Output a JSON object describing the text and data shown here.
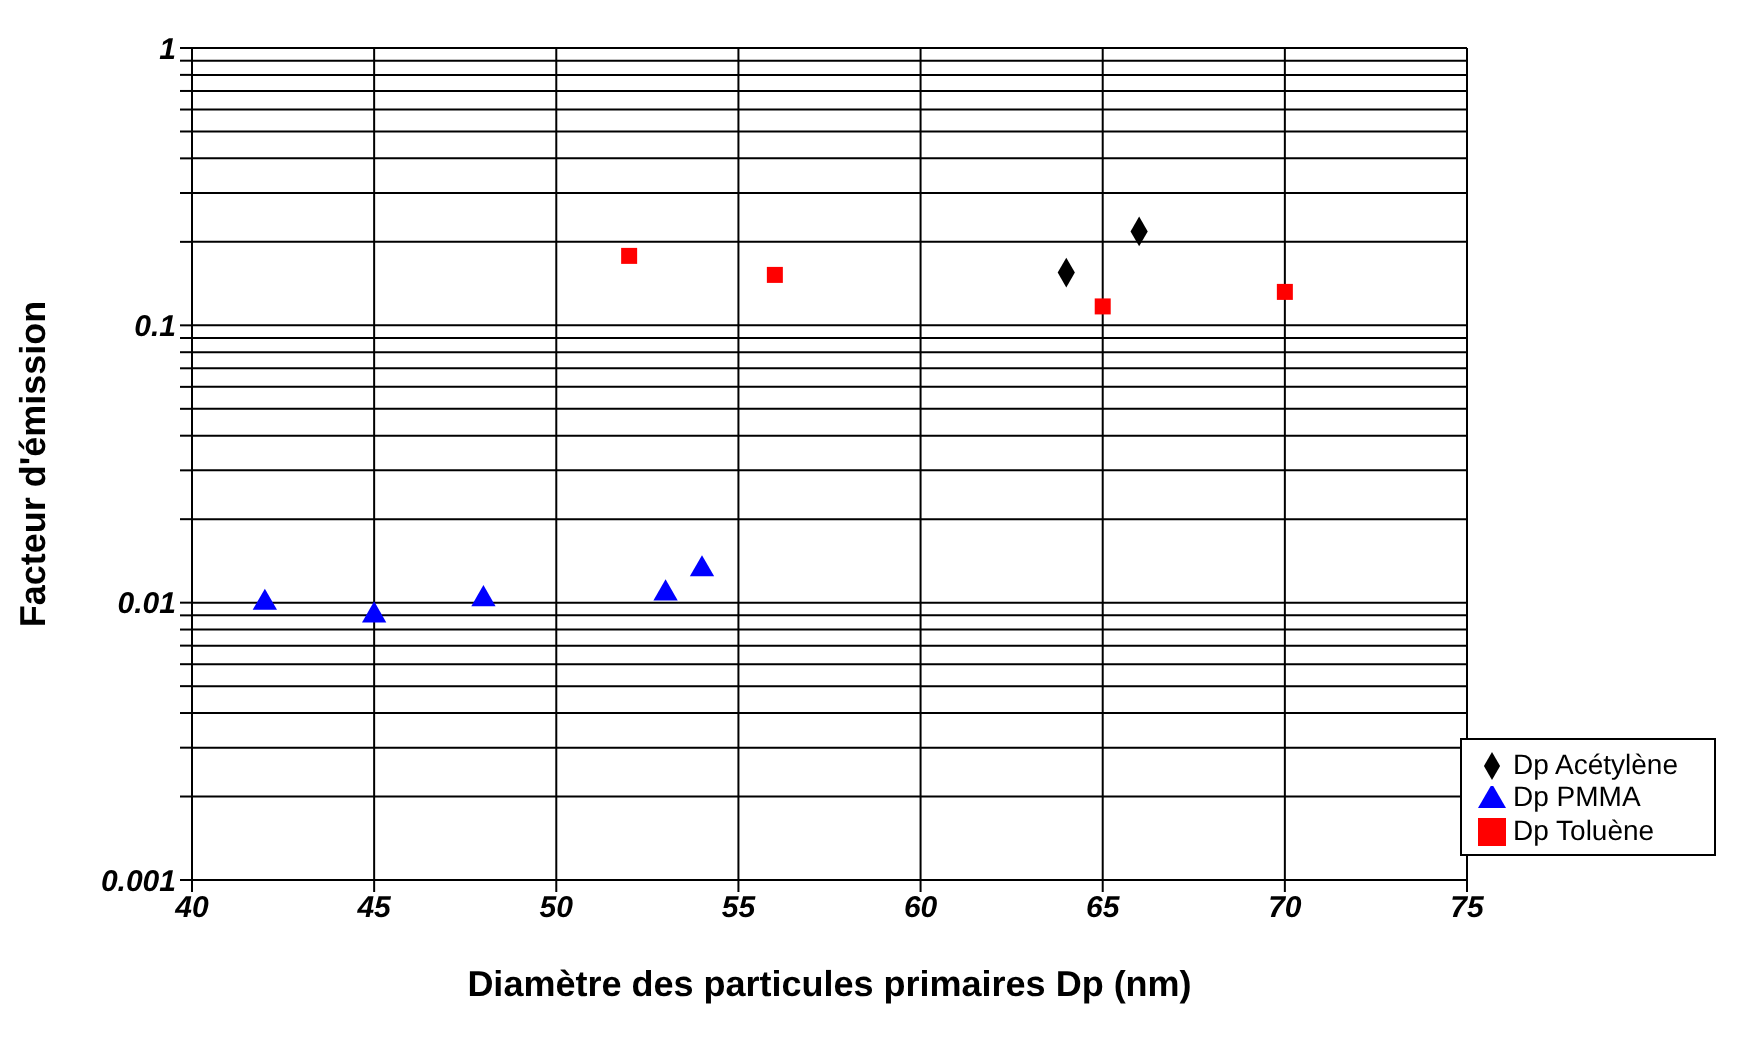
{
  "chart_data": {
    "type": "scatter",
    "xlabel": "Diamètre des particules primaires Dp (nm)",
    "ylabel": "Facteur d'émission",
    "xlim": [
      40,
      75
    ],
    "xticks": [
      40,
      45,
      50,
      55,
      60,
      65,
      70,
      75
    ],
    "ylim": [
      0.001,
      1
    ],
    "log": "y",
    "grid": true,
    "legend": "bottom right",
    "yticks": [
      0.001,
      {
        "value": 0.002,
        "label": null
      },
      {
        "value": 0.003,
        "label": null
      },
      {
        "value": 0.004,
        "label": null
      },
      {
        "value": 0.005,
        "label": null
      },
      {
        "value": 0.006,
        "label": null
      },
      {
        "value": 0.007,
        "label": null
      },
      {
        "value": 0.008,
        "label": null
      },
      {
        "value": 0.009,
        "label": null
      },
      0.01,
      {
        "value": 0.02,
        "label": null
      },
      {
        "value": 0.03,
        "label": null
      },
      {
        "value": 0.04,
        "label": null
      },
      {
        "value": 0.05,
        "label": null
      },
      {
        "value": 0.06,
        "label": null
      },
      {
        "value": 0.07,
        "label": null
      },
      {
        "value": 0.08,
        "label": null
      },
      {
        "value": 0.09,
        "label": null
      },
      0.1,
      {
        "value": 0.2,
        "label": null
      },
      {
        "value": 0.3,
        "label": null
      },
      {
        "value": 0.4,
        "label": null
      },
      {
        "value": 0.5,
        "label": null
      },
      {
        "value": 0.6,
        "label": null
      },
      {
        "value": 0.7,
        "label": null
      },
      {
        "value": 0.8,
        "label": null
      },
      {
        "value": 0.9,
        "label": null
      },
      1
    ],
    "series": [
      {
        "name": "Dp PMMA",
        "color": "#0000ff",
        "marker": "triangle",
        "x": [
          42,
          45,
          48,
          53,
          54
        ],
        "values": [
          0.01,
          0.009,
          0.0103,
          0.0108,
          0.0132
        ]
      },
      {
        "name": "Dp Toluène",
        "color": "#ff0000",
        "marker": "square",
        "x": [
          52,
          56,
          65,
          70
        ],
        "values": [
          0.178,
          0.152,
          0.117,
          0.132
        ]
      },
      {
        "name": "Dp Acétylène",
        "color": "#000000",
        "marker": "diamond",
        "x": [
          64,
          66
        ],
        "values": [
          0.155,
          0.218
        ]
      }
    ]
  }
}
